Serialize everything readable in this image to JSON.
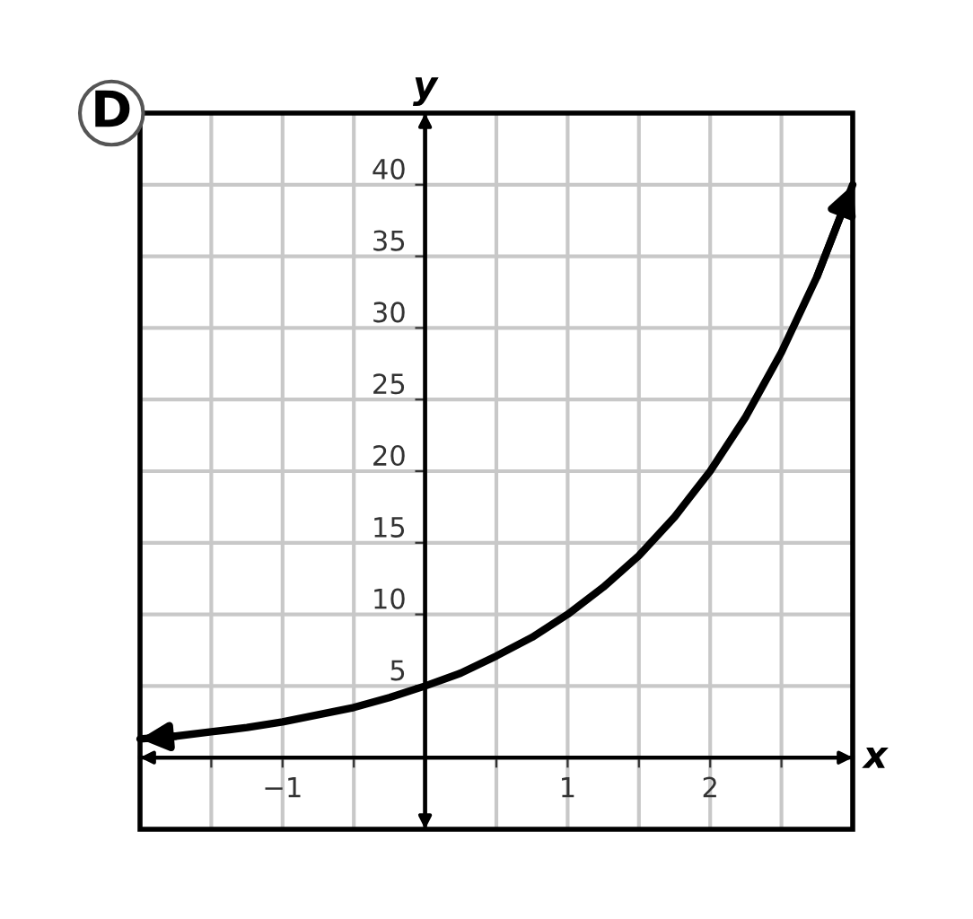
{
  "chart_data": {
    "type": "line",
    "title": "D",
    "xlabel": "x",
    "ylabel": "y",
    "x": [
      -2,
      -1.75,
      -1.5,
      -1.25,
      -1,
      -0.75,
      -0.5,
      -0.25,
      0,
      0.25,
      0.5,
      0.75,
      1,
      1.25,
      1.5,
      1.75,
      2,
      2.25,
      2.5,
      2.75,
      3
    ],
    "series": [
      {
        "color": "#000000",
        "values": [
          1.3,
          1.5,
          1.8,
          2.1,
          2.5,
          3,
          3.5,
          4.2,
          5,
          5.9,
          7.1,
          8.4,
          10,
          11.9,
          14.1,
          16.8,
          20,
          23.8,
          28.3,
          33.6,
          40
        ]
      }
    ],
    "xlim": [
      -2,
      3
    ],
    "ylim": [
      -5,
      45
    ],
    "xticks": [
      {
        "value": -2,
        "label": null
      },
      {
        "value": -1.5,
        "label": null
      },
      -1,
      {
        "value": -0.5,
        "label": null
      },
      {
        "value": 0,
        "label": null
      },
      {
        "value": 0.5,
        "label": null
      },
      1,
      {
        "value": 1.5,
        "label": null
      },
      2,
      {
        "value": 2.5,
        "label": null
      },
      {
        "value": 3,
        "label": null
      }
    ],
    "yticks": [
      {
        "value": -5,
        "label": null
      },
      {
        "value": 0,
        "label": null
      },
      5,
      10,
      15,
      20,
      25,
      30,
      35,
      40,
      {
        "value": 45,
        "label": null
      }
    ],
    "grid": true,
    "marker": "none",
    "line_style": "solid"
  }
}
